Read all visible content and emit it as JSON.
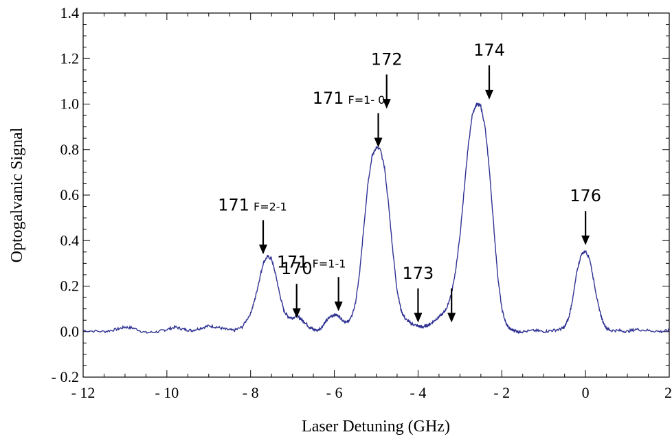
{
  "chart_data": {
    "type": "line",
    "xlabel": "Laser Detuning (GHz)",
    "ylabel": "Optogalvanic Signal",
    "xlim": [
      -12,
      2
    ],
    "ylim": [
      -0.2,
      1.4
    ],
    "x_ticks": [
      -12,
      -10,
      -8,
      -6,
      -4,
      -2,
      0,
      2
    ],
    "x_tick_labels": [
      "- 12",
      "- 10",
      "- 8",
      "- 6",
      "- 4",
      "- 2",
      "0",
      "2"
    ],
    "y_ticks": [
      -0.2,
      0.0,
      0.2,
      0.4,
      0.6,
      0.8,
      1.0,
      1.2,
      1.4
    ],
    "y_tick_labels": [
      "- 0.2",
      "0.0",
      "0.2",
      "0.4",
      "0.6",
      "0.8",
      "1.0",
      "1.2",
      "1.4"
    ],
    "grid": false,
    "line_color": "#2e3192",
    "series": [
      {
        "x": [
          -12.0,
          -11.5,
          -11.2,
          -11.0,
          -10.8,
          -10.5,
          -10.2,
          -10.0,
          -9.8,
          -9.6,
          -9.4,
          -9.2,
          -9.0,
          -8.8,
          -8.6,
          -8.4,
          -8.2,
          -8.0,
          -7.9,
          -7.8,
          -7.7,
          -7.6,
          -7.5,
          -7.4,
          -7.3,
          -7.2,
          -7.1,
          -7.0,
          -6.9,
          -6.8,
          -6.7,
          -6.6,
          -6.5,
          -6.4,
          -6.3,
          -6.2,
          -6.1,
          -6.0,
          -5.9,
          -5.8,
          -5.7,
          -5.6,
          -5.5,
          -5.4,
          -5.3,
          -5.2,
          -5.1,
          -5.0,
          -4.9,
          -4.8,
          -4.7,
          -4.6,
          -4.5,
          -4.4,
          -4.3,
          -4.2,
          -4.1,
          -4.0,
          -3.9,
          -3.8,
          -3.7,
          -3.6,
          -3.5,
          -3.4,
          -3.3,
          -3.2,
          -3.1,
          -3.0,
          -2.9,
          -2.8,
          -2.7,
          -2.6,
          -2.5,
          -2.4,
          -2.3,
          -2.2,
          -2.1,
          -2.0,
          -1.9,
          -1.8,
          -1.7,
          -1.6,
          -1.5,
          -1.2,
          -1.0,
          -0.8,
          -0.6,
          -0.5,
          -0.4,
          -0.3,
          -0.2,
          -0.1,
          0.0,
          0.1,
          0.2,
          0.3,
          0.4,
          0.5,
          0.6,
          0.8,
          1.0,
          1.2,
          1.5,
          1.8,
          2.0
        ],
        "y": [
          0.005,
          0.0,
          0.01,
          0.02,
          0.015,
          -0.005,
          0.0,
          0.01,
          0.02,
          0.01,
          0.005,
          0.015,
          0.025,
          0.02,
          0.01,
          0.005,
          0.02,
          0.08,
          0.14,
          0.22,
          0.3,
          0.33,
          0.32,
          0.25,
          0.16,
          0.09,
          0.065,
          0.06,
          0.07,
          0.055,
          0.04,
          0.02,
          0.01,
          0.005,
          0.02,
          0.045,
          0.065,
          0.075,
          0.07,
          0.05,
          0.04,
          0.06,
          0.12,
          0.25,
          0.45,
          0.65,
          0.77,
          0.81,
          0.8,
          0.72,
          0.55,
          0.35,
          0.18,
          0.09,
          0.055,
          0.04,
          0.03,
          0.025,
          0.02,
          0.025,
          0.035,
          0.05,
          0.065,
          0.08,
          0.11,
          0.17,
          0.27,
          0.42,
          0.62,
          0.82,
          0.96,
          1.0,
          0.99,
          0.9,
          0.72,
          0.48,
          0.25,
          0.1,
          0.035,
          0.01,
          0.005,
          0.0,
          0.0,
          0.005,
          0.0,
          0.005,
          0.01,
          0.02,
          0.06,
          0.15,
          0.27,
          0.34,
          0.355,
          0.32,
          0.22,
          0.12,
          0.05,
          0.015,
          0.005,
          0.005,
          0.0,
          0.01,
          0.005,
          0.0,
          0.005
        ]
      }
    ],
    "annotations": [
      {
        "label": "171",
        "sub": "F=2-1",
        "x": -7.7,
        "y_tip": 0.34,
        "y_tail": 0.49
      },
      {
        "label": "170",
        "sub": "",
        "x": -6.9,
        "y_tip": 0.06,
        "y_tail": 0.21
      },
      {
        "label": "171",
        "sub": "F=1-1",
        "x": -5.9,
        "y_tip": 0.09,
        "y_tail": 0.24
      },
      {
        "label": "171",
        "sub": "F=1- 0",
        "x": -4.95,
        "y_tip": 0.81,
        "y_tail": 0.96
      },
      {
        "label": "172",
        "sub": "",
        "x": -4.75,
        "y_tip": 0.98,
        "y_tail": 1.13
      },
      {
        "label": "173",
        "sub": "",
        "x": -4.0,
        "y_tip": 0.04,
        "y_tail": 0.19
      },
      {
        "label": "",
        "sub": "",
        "x": -3.2,
        "y_tip": 0.04,
        "y_tail": 0.19
      },
      {
        "label": "174",
        "sub": "",
        "x": -2.3,
        "y_tip": 1.02,
        "y_tail": 1.17
      },
      {
        "label": "176",
        "sub": "",
        "x": 0.0,
        "y_tip": 0.38,
        "y_tail": 0.53
      }
    ]
  }
}
